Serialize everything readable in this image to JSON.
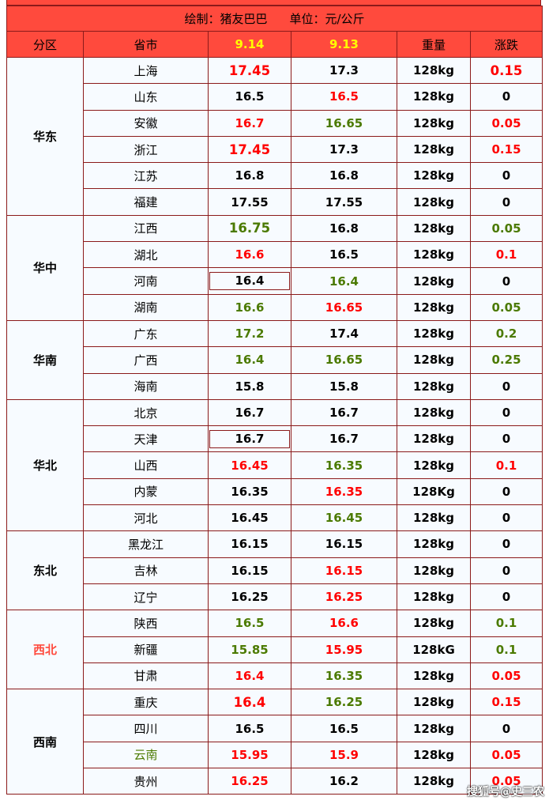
{
  "title": {
    "author": "绘制：猪友巴巴",
    "unit": "单位：元/公斤"
  },
  "headers": [
    "分区",
    "省市",
    "9.14",
    "9.13",
    "重量",
    "涨跌"
  ],
  "colors": {
    "header_bg": "#ff4a3d",
    "border": "#8b1a1a",
    "date_header": "#ffff00",
    "up_red": "#ff0000",
    "green": "#4b7a00"
  },
  "groups": [
    {
      "region": "华东",
      "rows": [
        {
          "prov": "上海",
          "d914": "17.45",
          "d914c": "r",
          "d914big": true,
          "d913": "17.3",
          "d913c": "k",
          "w": "128kg",
          "chg": "0.15",
          "chgc": "r",
          "chgbig": true
        },
        {
          "prov": "山东",
          "d914": "16.5",
          "d914c": "k",
          "d913": "16.5",
          "d913c": "r",
          "w": "128kg",
          "chg": "0",
          "chgc": "k"
        },
        {
          "prov": "安徽",
          "d914": "16.7",
          "d914c": "r",
          "d913": "16.65",
          "d913c": "g",
          "w": "128kg",
          "chg": "0.05",
          "chgc": "r"
        },
        {
          "prov": "浙江",
          "d914": "17.45",
          "d914c": "r",
          "d914big": true,
          "d913": "17.3",
          "d913c": "k",
          "w": "128kg",
          "chg": "0.15",
          "chgc": "r"
        },
        {
          "prov": "江苏",
          "d914": "16.8",
          "d914c": "k",
          "d913": "16.8",
          "d913c": "k",
          "w": "128kg",
          "chg": "0",
          "chgc": "k"
        },
        {
          "prov": "福建",
          "d914": "17.55",
          "d914c": "k",
          "d913": "17.55",
          "d913c": "k",
          "w": "128kg",
          "chg": "0",
          "chgc": "k"
        }
      ]
    },
    {
      "region": "华中",
      "rows": [
        {
          "prov": "江西",
          "d914": "16.75",
          "d914c": "g",
          "d914big": true,
          "d913": "16.8",
          "d913c": "k",
          "w": "128kg",
          "chg": "0.05",
          "chgc": "g"
        },
        {
          "prov": "湖北",
          "d914": "16.6",
          "d914c": "r",
          "d913": "16.5",
          "d913c": "k",
          "w": "128kg",
          "chg": "0.1",
          "chgc": "r"
        },
        {
          "prov": "河南",
          "d914": "16.4",
          "d914c": "k",
          "d914box": true,
          "d913": "16.4",
          "d913c": "g",
          "w": "128kg",
          "chg": "0",
          "chgc": "k"
        },
        {
          "prov": "湖南",
          "d914": "16.6",
          "d914c": "g",
          "d913": "16.65",
          "d913c": "r",
          "w": "128kg",
          "chg": "0.05",
          "chgc": "g"
        }
      ]
    },
    {
      "region": "华南",
      "rows": [
        {
          "prov": "广东",
          "d914": "17.2",
          "d914c": "g",
          "d913": "17.4",
          "d913c": "k",
          "w": "128kg",
          "chg": "0.2",
          "chgc": "g"
        },
        {
          "prov": "广西",
          "d914": "16.4",
          "d914c": "g",
          "d913": "16.65",
          "d913c": "g",
          "w": "128kg",
          "chg": "0.25",
          "chgc": "g"
        },
        {
          "prov": "海南",
          "d914": "15.8",
          "d914c": "k",
          "d913": "15.8",
          "d913c": "k",
          "w": "128kg",
          "chg": "0",
          "chgc": "k"
        }
      ]
    },
    {
      "region": "华北",
      "rows": [
        {
          "prov": "北京",
          "d914": "16.7",
          "d914c": "k",
          "d913": "16.7",
          "d913c": "k",
          "w": "128kg",
          "chg": "0",
          "chgc": "k"
        },
        {
          "prov": "天津",
          "d914": "16.7",
          "d914c": "k",
          "d914box": true,
          "d913": "16.7",
          "d913c": "k",
          "w": "128kg",
          "chg": "0",
          "chgc": "k"
        },
        {
          "prov": "山西",
          "d914": "16.45",
          "d914c": "r",
          "d913": "16.35",
          "d913c": "g",
          "w": "128kg",
          "chg": "0.1",
          "chgc": "r"
        },
        {
          "prov": "内蒙",
          "d914": "16.35",
          "d914c": "k",
          "d913": "16.35",
          "d913c": "r",
          "w": "128Kg",
          "chg": "0",
          "chgc": "k"
        },
        {
          "prov": "河北",
          "d914": "16.45",
          "d914c": "k",
          "d913": "16.45",
          "d913c": "g",
          "w": "128kg",
          "chg": "0",
          "chgc": "k"
        }
      ]
    },
    {
      "region": "东北",
      "rows": [
        {
          "prov": "黑龙江",
          "d914": "16.15",
          "d914c": "k",
          "d913": "16.15",
          "d913c": "k",
          "w": "128kg",
          "chg": "0",
          "chgc": "k"
        },
        {
          "prov": "吉林",
          "d914": "16.15",
          "d914c": "k",
          "d913": "16.15",
          "d913c": "r",
          "w": "128kg",
          "chg": "0",
          "chgc": "k"
        },
        {
          "prov": "辽宁",
          "d914": "16.25",
          "d914c": "k",
          "d913": "16.25",
          "d913c": "r",
          "w": "128kg",
          "chg": "0",
          "chgc": "k"
        }
      ]
    },
    {
      "region": "西北",
      "regionc": "rr",
      "rows": [
        {
          "prov": "陕西",
          "d914": "16.5",
          "d914c": "g",
          "d913": "16.6",
          "d913c": "r",
          "w": "128kg",
          "chg": "0.1",
          "chgc": "g"
        },
        {
          "prov": "新疆",
          "d914": "15.85",
          "d914c": "g",
          "d913": "15.95",
          "d913c": "r",
          "w": "128kG",
          "chg": "0.1",
          "chgc": "g"
        },
        {
          "prov": "甘肃",
          "d914": "16.4",
          "d914c": "r",
          "d913": "16.35",
          "d913c": "g",
          "w": "128kg",
          "chg": "0.05",
          "chgc": "r"
        }
      ]
    },
    {
      "region": "西南",
      "rows": [
        {
          "prov": "重庆",
          "d914": "16.4",
          "d914c": "r",
          "d914big": true,
          "d913": "16.25",
          "d913c": "g",
          "w": "128kg",
          "chg": "0.15",
          "chgc": "r"
        },
        {
          "prov": "四川",
          "d914": "16.5",
          "d914c": "k",
          "d913": "16.5",
          "d913c": "k",
          "w": "128kg",
          "chg": "0",
          "chgc": "k"
        },
        {
          "prov": "云南",
          "provc": "g",
          "d914": "15.95",
          "d914c": "r",
          "d913": "15.9",
          "d913c": "r",
          "w": "128kg",
          "chg": "0.05",
          "chgc": "r"
        },
        {
          "prov": "贵州",
          "d914": "16.25",
          "d914c": "r",
          "d913": "16.2",
          "d913c": "k",
          "w": "128kg",
          "chg": "0.05",
          "chgc": "r"
        }
      ]
    }
  ],
  "watermark": "搜狐号@史三农"
}
